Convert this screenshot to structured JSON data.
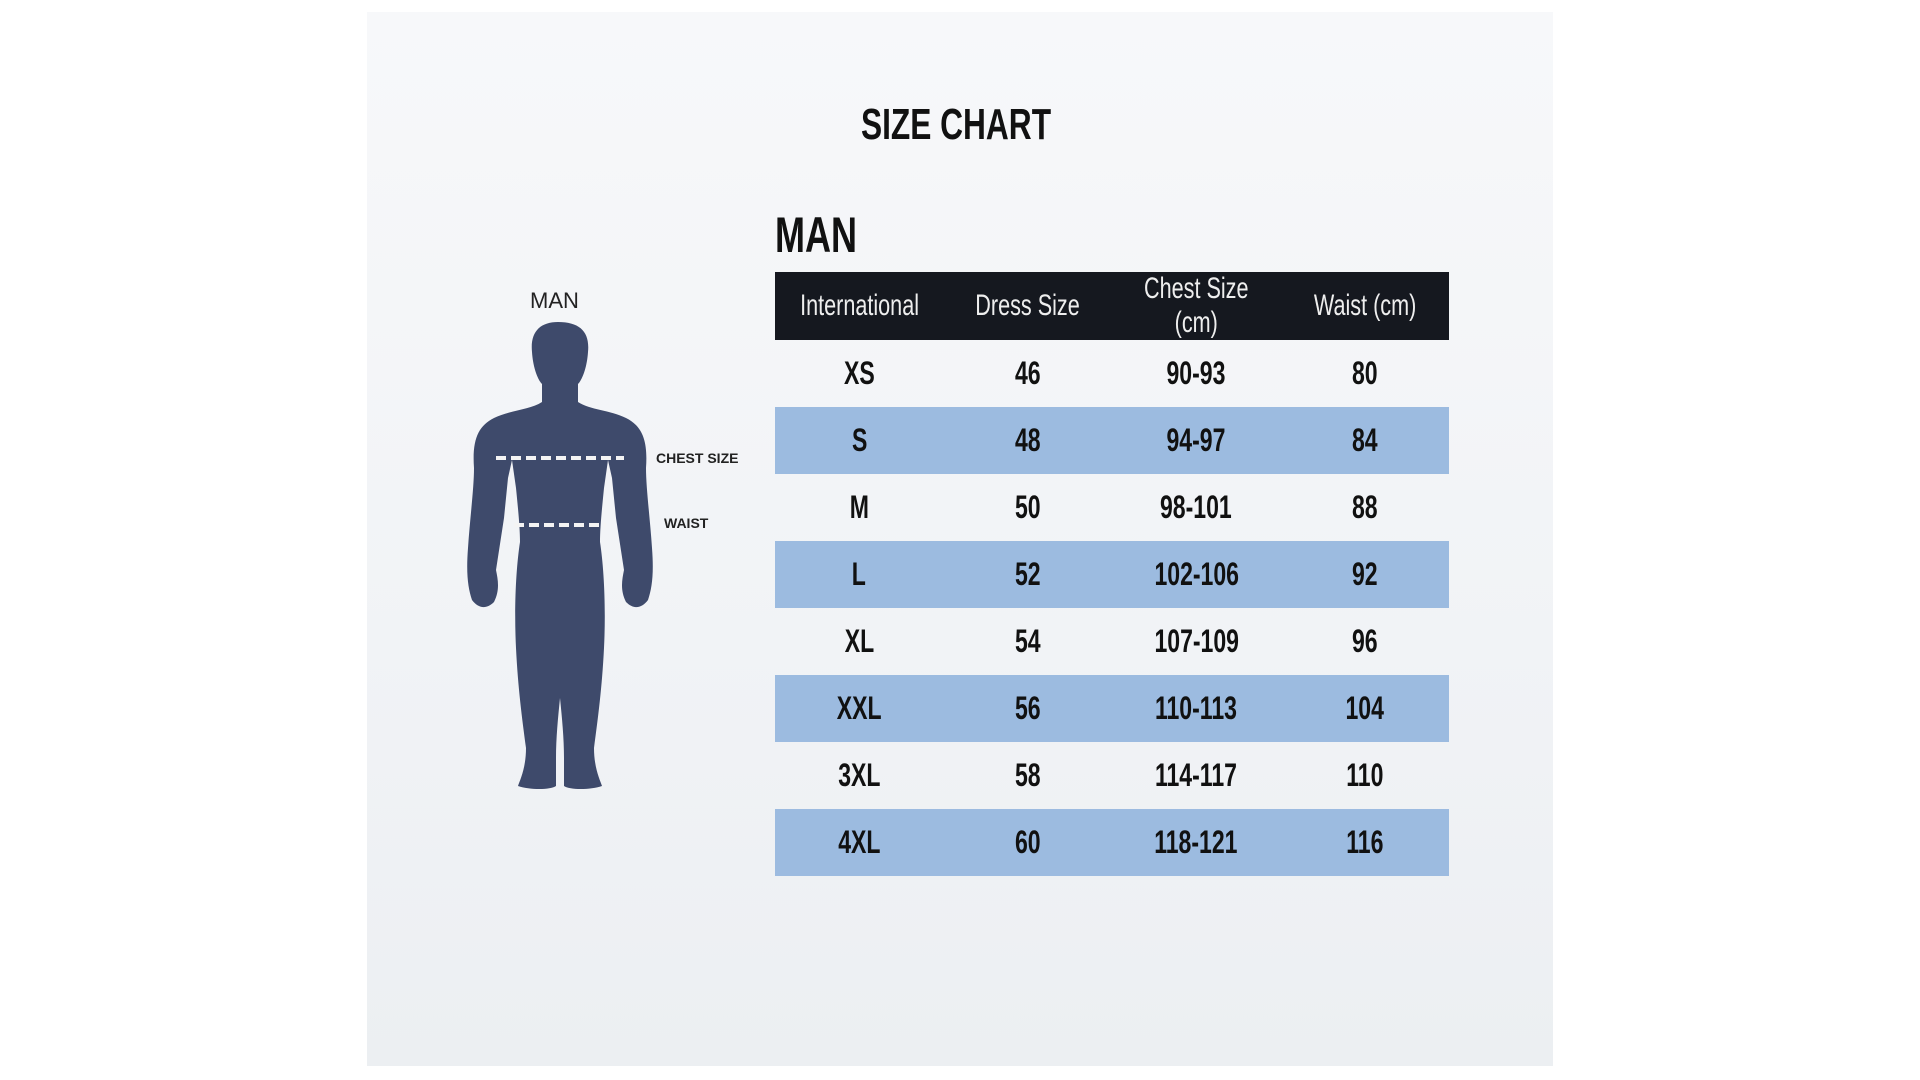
{
  "title": "SIZE CHART",
  "section_title": "MAN",
  "figure": {
    "label": "MAN",
    "chest_label": "CHEST SIZE",
    "waist_label": "WAIST",
    "color": "#3e4a6b"
  },
  "table": {
    "headers": [
      "International",
      "Dress Size",
      "Chest Size (cm)",
      "Waist (cm)"
    ],
    "rows": [
      [
        "XS",
        "46",
        "90-93",
        "80"
      ],
      [
        "S",
        "48",
        "94-97",
        "84"
      ],
      [
        "M",
        "50",
        "98-101",
        "88"
      ],
      [
        "L",
        "52",
        "102-106",
        "92"
      ],
      [
        "XL",
        "54",
        "107-109",
        "96"
      ],
      [
        "XXL",
        "56",
        "110-113",
        "104"
      ],
      [
        "3XL",
        "58",
        "114-117",
        "110"
      ],
      [
        "4XL",
        "60",
        "118-121",
        "116"
      ]
    ],
    "header_color": "#15181f",
    "stripe_color": "#9cbbe0"
  }
}
